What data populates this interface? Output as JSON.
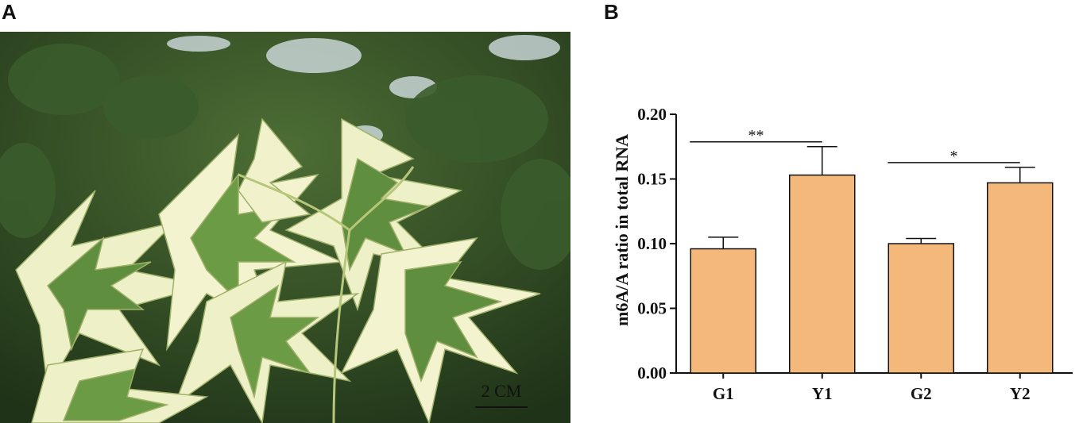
{
  "panels": {
    "a": "A",
    "b": "B"
  },
  "photo": {
    "scale_bar_label": "2 CM",
    "colors": {
      "leaf_cream": "#eef0c8",
      "leaf_green": "#5f8f3e",
      "foliage_dark": "#2e4a24",
      "sky": "#dbe6ec"
    }
  },
  "chart_data": {
    "type": "bar",
    "categories": [
      "G1",
      "Y1",
      "G2",
      "Y2"
    ],
    "values": [
      0.096,
      0.153,
      0.1,
      0.147
    ],
    "errors": [
      0.009,
      0.022,
      0.004,
      0.012
    ],
    "ylabel": "m6A/A ratio in total RNA",
    "xlabel": "",
    "ylim": [
      0,
      0.2
    ],
    "yticks": [
      "0.00",
      "0.05",
      "0.10",
      "0.15",
      "0.20"
    ],
    "bar_color": "#f4b97a",
    "significance": [
      {
        "from": "G1",
        "to": "Y1",
        "label": "**"
      },
      {
        "from": "G2",
        "to": "Y2",
        "label": "*"
      }
    ],
    "grid": false
  }
}
